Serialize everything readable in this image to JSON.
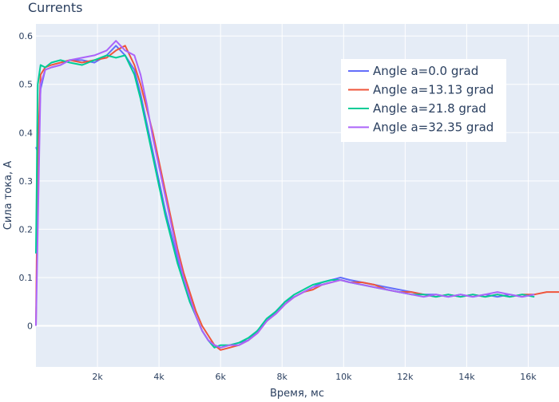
{
  "chart_data": {
    "type": "line",
    "title": "Currents",
    "xlabel": "Время, мс",
    "ylabel": "Сила тока, А",
    "xlim": [
      0,
      17000
    ],
    "ylim": [
      -0.085,
      0.625
    ],
    "grid": true,
    "legend_position": "top-right",
    "xticks": [
      {
        "v": 2000,
        "label": "2k"
      },
      {
        "v": 4000,
        "label": "4k"
      },
      {
        "v": 6000,
        "label": "6k"
      },
      {
        "v": 8000,
        "label": "8k"
      },
      {
        "v": 10000,
        "label": "10k"
      },
      {
        "v": 12000,
        "label": "12k"
      },
      {
        "v": 14000,
        "label": "14k"
      },
      {
        "v": 16000,
        "label": "16k"
      }
    ],
    "yticks": [
      {
        "v": 0,
        "label": "0"
      },
      {
        "v": 0.1,
        "label": "0.1"
      },
      {
        "v": 0.2,
        "label": "0.2"
      },
      {
        "v": 0.3,
        "label": "0.3"
      },
      {
        "v": 0.4,
        "label": "0.4"
      },
      {
        "v": 0.5,
        "label": "0.5"
      },
      {
        "v": 0.6,
        "label": "0.6"
      }
    ],
    "series": [
      {
        "name": "Angle a=0.0 grad",
        "color": "#636efa",
        "x": [
          0,
          60,
          150,
          300,
          500,
          800,
          1100,
          1500,
          1900,
          2300,
          2600,
          2900,
          3200,
          3400,
          3600,
          3800,
          4000,
          4200,
          4400,
          4600,
          4800,
          5000,
          5200,
          5400,
          5600,
          5800,
          6000,
          6300,
          6600,
          6900,
          7200,
          7500,
          7800,
          8100,
          8400,
          8700,
          9000,
          9300,
          9600,
          9900,
          10200,
          10600,
          11000,
          11400,
          11800,
          12200,
          12600,
          13000,
          13400,
          13800,
          14200,
          14600,
          15000,
          15400,
          15800,
          16200
        ],
        "y": [
          0.37,
          0.36,
          0.49,
          0.53,
          0.535,
          0.54,
          0.55,
          0.55,
          0.545,
          0.56,
          0.58,
          0.56,
          0.53,
          0.48,
          0.42,
          0.36,
          0.3,
          0.24,
          0.19,
          0.14,
          0.09,
          0.05,
          0.02,
          -0.01,
          -0.03,
          -0.04,
          -0.045,
          -0.04,
          -0.035,
          -0.03,
          -0.01,
          0.01,
          0.03,
          0.05,
          0.06,
          0.07,
          0.08,
          0.09,
          0.095,
          0.1,
          0.095,
          0.09,
          0.085,
          0.08,
          0.075,
          0.07,
          0.065,
          0.065,
          0.06,
          0.065,
          0.06,
          0.065,
          0.06,
          0.065,
          0.06,
          0.065
        ]
      },
      {
        "name": "Angle a=13.13 grad",
        "color": "#ef553b",
        "x": [
          0,
          60,
          150,
          300,
          500,
          800,
          1100,
          1500,
          1900,
          2300,
          2600,
          2900,
          3200,
          3400,
          3600,
          3800,
          4000,
          4200,
          4400,
          4600,
          4800,
          5000,
          5200,
          5400,
          5600,
          5800,
          6000,
          6300,
          6600,
          6900,
          7200,
          7500,
          7800,
          8100,
          8400,
          8700,
          9000,
          9300,
          9600,
          9900,
          10200,
          10600,
          11000,
          11400,
          11800,
          12200,
          12600,
          13000,
          13400,
          13800,
          14200,
          14600,
          15000,
          15400,
          15800,
          16200,
          16600,
          17000
        ],
        "y": [
          0.0,
          0.35,
          0.52,
          0.535,
          0.54,
          0.545,
          0.55,
          0.545,
          0.55,
          0.555,
          0.57,
          0.58,
          0.54,
          0.5,
          0.45,
          0.4,
          0.34,
          0.28,
          0.22,
          0.16,
          0.11,
          0.07,
          0.03,
          0.0,
          -0.02,
          -0.04,
          -0.05,
          -0.045,
          -0.04,
          -0.03,
          -0.015,
          0.01,
          0.025,
          0.045,
          0.06,
          0.07,
          0.075,
          0.085,
          0.09,
          0.095,
          0.09,
          0.09,
          0.085,
          0.075,
          0.07,
          0.07,
          0.065,
          0.06,
          0.065,
          0.06,
          0.065,
          0.06,
          0.065,
          0.06,
          0.065,
          0.065,
          0.07,
          0.07
        ]
      },
      {
        "name": "Angle a=21.8 grad",
        "color": "#00cc96",
        "x": [
          0,
          60,
          150,
          300,
          500,
          800,
          1100,
          1500,
          1900,
          2300,
          2600,
          2900,
          3200,
          3400,
          3600,
          3800,
          4000,
          4200,
          4400,
          4600,
          4800,
          5000,
          5200,
          5400,
          5600,
          5800,
          6000,
          6300,
          6600,
          6900,
          7200,
          7500,
          7800,
          8100,
          8400,
          8700,
          9000,
          9300,
          9600,
          9900,
          10200,
          10600,
          11000,
          11400,
          11800,
          12200,
          12600,
          13000,
          13400,
          13800,
          14200,
          14600,
          15000,
          15400,
          15800,
          16200
        ],
        "y": [
          0.15,
          0.5,
          0.54,
          0.535,
          0.545,
          0.55,
          0.545,
          0.54,
          0.55,
          0.56,
          0.555,
          0.56,
          0.52,
          0.47,
          0.41,
          0.35,
          0.29,
          0.23,
          0.18,
          0.13,
          0.09,
          0.05,
          0.02,
          -0.01,
          -0.03,
          -0.045,
          -0.04,
          -0.04,
          -0.035,
          -0.025,
          -0.01,
          0.015,
          0.03,
          0.05,
          0.065,
          0.075,
          0.085,
          0.09,
          0.095,
          0.095,
          0.09,
          0.085,
          0.08,
          0.075,
          0.07,
          0.065,
          0.065,
          0.06,
          0.065,
          0.06,
          0.065,
          0.06,
          0.065,
          0.06,
          0.065,
          0.06
        ]
      },
      {
        "name": "Angle a=32.35 grad",
        "color": "#ab63fa",
        "x": [
          0,
          60,
          150,
          300,
          500,
          800,
          1100,
          1500,
          1900,
          2300,
          2600,
          2900,
          3200,
          3400,
          3600,
          3800,
          4000,
          4200,
          4400,
          4600,
          4800,
          5000,
          5200,
          5400,
          5600,
          5800,
          6000,
          6300,
          6600,
          6900,
          7200,
          7500,
          7800,
          8100,
          8400,
          8700,
          9000,
          9300,
          9600,
          9900,
          10200,
          10600,
          11000,
          11400,
          11800,
          12200,
          12600,
          13000,
          13400,
          13800,
          14200,
          14600,
          15000,
          15400,
          15800,
          16200
        ],
        "y": [
          0.0,
          0.2,
          0.5,
          0.53,
          0.535,
          0.54,
          0.55,
          0.555,
          0.56,
          0.57,
          0.59,
          0.57,
          0.56,
          0.52,
          0.46,
          0.39,
          0.33,
          0.27,
          0.21,
          0.15,
          0.1,
          0.06,
          0.02,
          -0.01,
          -0.03,
          -0.04,
          -0.045,
          -0.04,
          -0.04,
          -0.03,
          -0.015,
          0.01,
          0.025,
          0.045,
          0.06,
          0.07,
          0.08,
          0.085,
          0.09,
          0.095,
          0.09,
          0.085,
          0.08,
          0.075,
          0.07,
          0.065,
          0.06,
          0.065,
          0.06,
          0.065,
          0.06,
          0.065,
          0.07,
          0.065,
          0.06,
          0.065
        ]
      }
    ]
  }
}
